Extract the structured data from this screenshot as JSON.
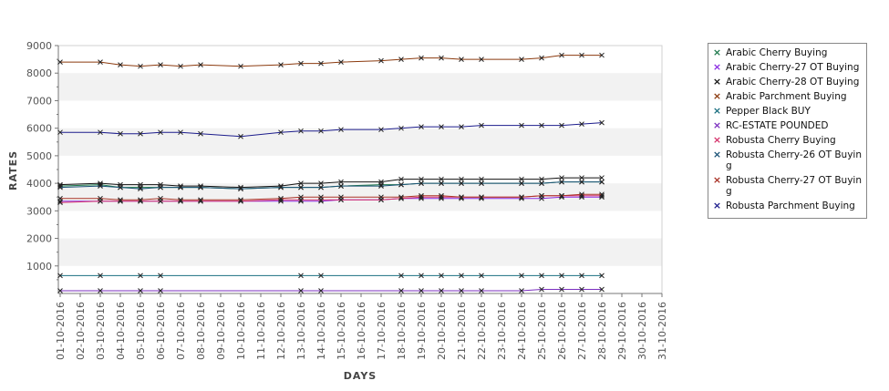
{
  "chart_data": {
    "type": "line",
    "xlabel": "DAYS",
    "ylabel": "RATES",
    "ylim": [
      0,
      9000
    ],
    "yticks": [
      1000,
      2000,
      3000,
      4000,
      5000,
      6000,
      7000,
      8000,
      9000
    ],
    "categories": [
      "01-10-2016",
      "02-10-2016",
      "03-10-2016",
      "04-10-2016",
      "05-10-2016",
      "06-10-2016",
      "07-10-2016",
      "08-10-2016",
      "09-10-2016",
      "10-10-2016",
      "11-10-2016",
      "12-10-2016",
      "13-10-2016",
      "14-10-2016",
      "15-10-2016",
      "16-10-2016",
      "17-10-2016",
      "18-10-2016",
      "19-10-2016",
      "20-10-2016",
      "21-10-2016",
      "22-10-2016",
      "23-10-2016",
      "24-10-2016",
      "25-10-2016",
      "26-10-2016",
      "27-10-2016",
      "28-10-2016",
      "29-10-2016",
      "30-10-2016",
      "31-10-2016"
    ],
    "legend_position": "right",
    "grid": "alternating horizontal bands",
    "series": [
      {
        "name": "Arabic Cherry Buying",
        "color": "#1f7a4d",
        "values": [
          3900,
          null,
          3950,
          3850,
          3850,
          3850,
          3850,
          3850,
          null,
          3800,
          null,
          3850,
          3850,
          3850,
          3900,
          null,
          3950,
          3950,
          4000,
          4000,
          4000,
          4000,
          null,
          4000,
          4000,
          4050,
          4050,
          4050,
          null,
          null,
          null
        ]
      },
      {
        "name": "Arabic Cherry-27 OT Buying",
        "color": "#8a2be2",
        "values": [
          3350,
          null,
          3350,
          3350,
          3350,
          3350,
          3350,
          3350,
          null,
          3350,
          null,
          3350,
          3350,
          3350,
          3400,
          null,
          3400,
          3450,
          3450,
          3450,
          3450,
          3450,
          null,
          3450,
          3450,
          3500,
          3500,
          3500,
          null,
          null,
          null
        ]
      },
      {
        "name": "Arabic Cherry-28 OT Buying",
        "color": "#111111",
        "values": [
          3950,
          null,
          4000,
          3950,
          3950,
          3950,
          3900,
          3900,
          null,
          3850,
          null,
          3900,
          4000,
          4000,
          4050,
          null,
          4050,
          4150,
          4150,
          4150,
          4150,
          4150,
          null,
          4150,
          4150,
          4200,
          4200,
          4200,
          null,
          null,
          null
        ]
      },
      {
        "name": "Arabic Parchment Buying",
        "color": "#8b3a0e",
        "values": [
          8400,
          null,
          8400,
          8300,
          8250,
          8300,
          8250,
          8300,
          null,
          8250,
          null,
          8300,
          8350,
          8350,
          8400,
          null,
          8450,
          8500,
          8550,
          8550,
          8500,
          8500,
          null,
          8500,
          8550,
          8650,
          8650,
          8650,
          null,
          null,
          null
        ]
      },
      {
        "name": "Pepper Black BUY",
        "color": "#1a6f80",
        "values": [
          650,
          null,
          650,
          null,
          650,
          650,
          null,
          null,
          null,
          null,
          null,
          null,
          650,
          650,
          null,
          null,
          null,
          650,
          650,
          650,
          650,
          650,
          null,
          650,
          650,
          650,
          650,
          650,
          null,
          null,
          null
        ]
      },
      {
        "name": "RC-ESTATE POUNDED",
        "color": "#7b2fbf",
        "values": [
          100,
          null,
          100,
          null,
          100,
          100,
          null,
          null,
          null,
          null,
          null,
          null,
          100,
          100,
          null,
          null,
          null,
          100,
          100,
          100,
          100,
          100,
          null,
          100,
          150,
          150,
          150,
          150,
          null,
          null,
          null
        ]
      },
      {
        "name": "Robusta Cherry Buying",
        "color": "#d6336c",
        "values": [
          3300,
          null,
          3350,
          3350,
          3350,
          3350,
          3350,
          3350,
          null,
          3350,
          null,
          3400,
          3400,
          3400,
          3400,
          null,
          3400,
          3450,
          3500,
          3500,
          3500,
          3500,
          null,
          3500,
          3550,
          3550,
          3550,
          3550,
          null,
          null,
          null
        ]
      },
      {
        "name": "Robusta Cherry-26 OT Buying",
        "color": "#1a5276",
        "values": [
          3850,
          null,
          3900,
          3850,
          3800,
          3850,
          3850,
          3850,
          null,
          3800,
          null,
          3850,
          3850,
          3850,
          3900,
          null,
          3900,
          3950,
          4000,
          4000,
          4000,
          4000,
          null,
          4000,
          4000,
          4050,
          4050,
          4050,
          null,
          null,
          null
        ]
      },
      {
        "name": "Robusta Cherry-27 OT Buying",
        "color": "#a93226",
        "values": [
          3450,
          null,
          3450,
          3400,
          3400,
          3450,
          3400,
          3400,
          null,
          3400,
          null,
          3450,
          3500,
          3500,
          3500,
          null,
          3500,
          3500,
          3550,
          3550,
          3500,
          3500,
          null,
          3500,
          3550,
          3550,
          3600,
          3600,
          null,
          null,
          null
        ]
      },
      {
        "name": "Robusta Parchment Buying",
        "color": "#1c1c8c",
        "values": [
          5850,
          null,
          5850,
          5800,
          5800,
          5850,
          5850,
          5800,
          null,
          5700,
          null,
          5850,
          5900,
          5900,
          5950,
          null,
          5950,
          6000,
          6050,
          6050,
          6050,
          6100,
          null,
          6100,
          6100,
          6100,
          6150,
          6200,
          null,
          null,
          null
        ]
      }
    ]
  }
}
